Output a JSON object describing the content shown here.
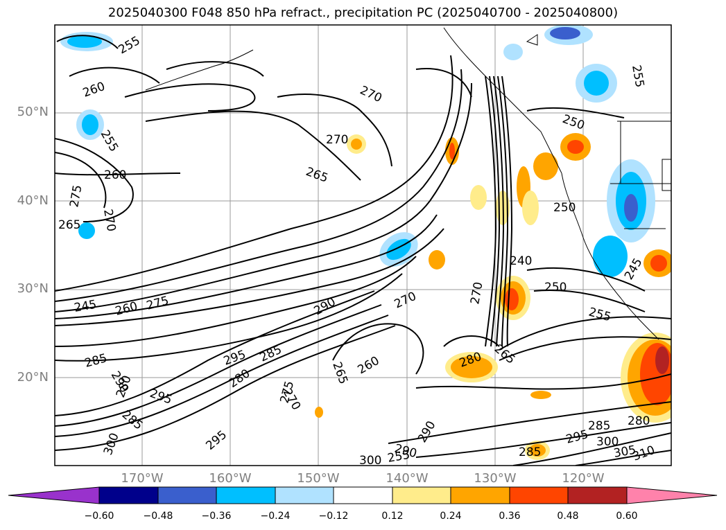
{
  "title": "2025040300 F048 850 hPa refract., precipitation PC (2025040700 - 2025040800)",
  "lat_labels": [
    "50°N",
    "40°N",
    "30°N",
    "20°N"
  ],
  "lon_labels": [
    "170°W",
    "160°W",
    "150°W",
    "140°W",
    "130°W",
    "120°W"
  ],
  "colorbar": {
    "ticks": [
      "−0.60",
      "−0.48",
      "−0.36",
      "−0.24",
      "−0.12",
      "0.12",
      "0.24",
      "0.36",
      "0.48",
      "0.60"
    ],
    "colors": [
      "#9932cc",
      "#00008b",
      "#3a5fcd",
      "#00bfff",
      "#b0e2ff",
      "#ffffff",
      "#ffec8b",
      "#ffa500",
      "#ff4500",
      "#b22222",
      "#ff82ab"
    ]
  },
  "contour_labels": [
    "255",
    "260",
    "255",
    "270",
    "270",
    "265",
    "260",
    "270",
    "275",
    "265",
    "250",
    "250",
    "255",
    "245",
    "240",
    "270",
    "250",
    "255",
    "245",
    "260",
    "275",
    "290",
    "270",
    "280",
    "265",
    "260",
    "265",
    "285",
    "295",
    "285",
    "280",
    "270",
    "275",
    "290",
    "295",
    "285",
    "280",
    "300",
    "295",
    "290",
    "290",
    "300",
    "285",
    "295",
    "300",
    "305",
    "310",
    "280",
    "285",
    "255"
  ]
}
